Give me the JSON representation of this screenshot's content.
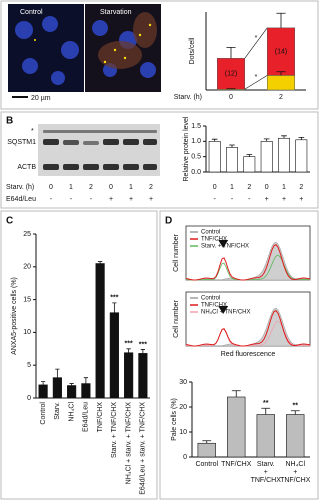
{
  "panel_labels": [
    "A",
    "B",
    "C",
    "D"
  ],
  "micrograph": {
    "labels": [
      "Control",
      "Starvation"
    ],
    "scale_bar": "20 µm"
  },
  "blot": {
    "marker": "*",
    "bands": [
      "SQSTM1",
      "ACTB"
    ],
    "rows": [
      {
        "label": "Starv. (h)",
        "values": [
          "0",
          "1",
          "2",
          "0",
          "1",
          "2"
        ]
      },
      {
        "label": "E64d/Leu",
        "values": [
          "-",
          "-",
          "-",
          "+",
          "+",
          "+"
        ]
      }
    ]
  },
  "flow_plots": [
    {
      "y_label": "Cell number",
      "legend": [
        {
          "name": "Control",
          "color": "#9e9e9e"
        },
        {
          "name": "TNF/CHX",
          "color": "#e01b1b"
        },
        {
          "name": "Starv. + TNF/CHX",
          "color": "#5cb85c"
        }
      ]
    },
    {
      "y_label": "Cell number",
      "x_label": "Red fluorescence",
      "legend": [
        {
          "name": "Control",
          "color": "#9e9e9e"
        },
        {
          "name": "TNF/CHX",
          "color": "#e01b1b"
        },
        {
          "name": "NH₄Cl + TNF/CHX",
          "color": "#f0a0b0"
        }
      ]
    }
  ],
  "chart_data": [
    {
      "type": "bar",
      "y_label": "Dots/cell",
      "x_label": "Starv. (h)",
      "categories": [
        "0",
        "2"
      ],
      "ylim": [
        0,
        320
      ],
      "series": [
        {
          "name": null,
          "color": "#f5d000",
          "values": [
            3,
            60
          ],
          "errors": [
            2,
            15
          ]
        },
        {
          "name": null,
          "color": "#e8202a",
          "values": [
            127,
            195
          ],
          "errors": [
            45,
            60
          ]
        }
      ],
      "annotations": [
        "(12)",
        "(14)"
      ],
      "comparison_labels": [
        "*",
        "*"
      ]
    },
    {
      "type": "bar",
      "y_label": "Relative protein level",
      "categories": [
        null,
        null,
        null,
        null,
        null,
        null
      ],
      "color": "#ffffff",
      "values": [
        1.0,
        0.8,
        0.5,
        1.0,
        1.1,
        1.05
      ],
      "errors": [
        0.07,
        0.08,
        0.07,
        0.08,
        0.08,
        0.08
      ],
      "ylim": [
        0,
        1.5
      ],
      "yticks": [
        {
          "value": 0,
          "label": "0.0"
        },
        {
          "value": 0.5,
          "label": "0.5"
        },
        {
          "value": 1,
          "label": "1.0"
        },
        {
          "value": 1.5,
          "label": "1.5"
        }
      ]
    },
    {
      "type": "bar",
      "y_label": "ANXA5-positive cells (%)",
      "categories": [
        "Control",
        "Starv.",
        "NH₄Cl",
        "E64d/Leu",
        "TNF/CHX",
        "Starv. + TNF/CHX",
        "NH₄Cl + starv. + TNF/CHX",
        "E64d/Leu + starv. + TNF/CHX"
      ],
      "color": "#111111",
      "values": [
        2,
        3.1,
        1.9,
        2.2,
        20.5,
        13,
        6.9,
        6.8
      ],
      "errors": [
        0.5,
        1.3,
        0.3,
        0.9,
        0.3,
        1.5,
        0.6,
        0.6
      ],
      "annotations": [
        null,
        null,
        null,
        null,
        null,
        "***",
        "***",
        "***"
      ],
      "ylim": [
        0,
        25
      ],
      "yticks": [
        0,
        5,
        10,
        15,
        20,
        25
      ]
    },
    {
      "type": "bar",
      "y_label": "Pale cells (%)",
      "categories": [
        "Control",
        "TNF/CHX",
        "Starv. + TNF/CHX",
        "NH₄Cl + TNF/CHX"
      ],
      "color": "#bdbdbd",
      "values": [
        5.5,
        24,
        17,
        17
      ],
      "errors": [
        1,
        2.5,
        2.5,
        1.5
      ],
      "annotations": [
        null,
        null,
        "**",
        "**"
      ],
      "ylim": [
        0,
        30
      ],
      "yticks": [
        0,
        10,
        20,
        30
      ]
    }
  ]
}
